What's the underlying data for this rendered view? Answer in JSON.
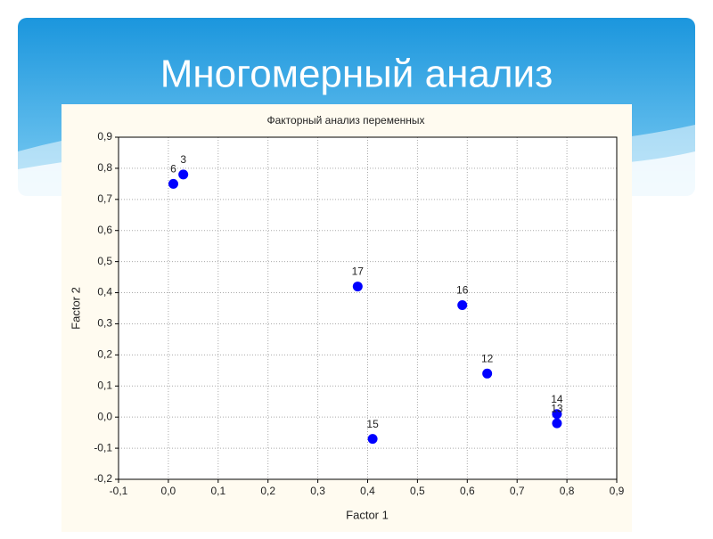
{
  "slide": {
    "title": "Многомерный анализ"
  },
  "chart_data": {
    "type": "scatter",
    "title": "Факторный анализ переменных",
    "xlabel": "Factor 1",
    "ylabel": "Factor 2",
    "color": "#0000ff",
    "grid": true,
    "x": [
      0.01,
      0.03,
      0.38,
      0.59,
      0.64,
      0.78,
      0.78,
      0.41
    ],
    "values": [
      0.75,
      0.78,
      0.42,
      0.36,
      0.14,
      0.01,
      -0.02,
      -0.07
    ],
    "point_labels": [
      "6",
      "3",
      "17",
      "16",
      "12",
      "14",
      "13",
      "15"
    ],
    "xlim": [
      -0.1,
      0.9
    ],
    "ylim": [
      -0.2,
      0.9
    ],
    "xticks": [
      {
        "value": -0.1,
        "label": "-0,1"
      },
      {
        "value": 0,
        "label": "0,0"
      },
      {
        "value": 0.1,
        "label": "0,1"
      },
      {
        "value": 0.2,
        "label": "0,2"
      },
      {
        "value": 0.3,
        "label": "0,3"
      },
      {
        "value": 0.4,
        "label": "0,4"
      },
      {
        "value": 0.5,
        "label": "0,5"
      },
      {
        "value": 0.6,
        "label": "0,6"
      },
      {
        "value": 0.7,
        "label": "0,7"
      },
      {
        "value": 0.8,
        "label": "0,8"
      },
      {
        "value": 0.9,
        "label": "0,9"
      }
    ],
    "yticks": [
      {
        "value": -0.2,
        "label": "-0,2"
      },
      {
        "value": -0.1,
        "label": "-0,1"
      },
      {
        "value": 0,
        "label": "0,0"
      },
      {
        "value": 0.1,
        "label": "0,1"
      },
      {
        "value": 0.2,
        "label": "0,2"
      },
      {
        "value": 0.3,
        "label": "0,3"
      },
      {
        "value": 0.4,
        "label": "0,4"
      },
      {
        "value": 0.5,
        "label": "0,5"
      },
      {
        "value": 0.6,
        "label": "0,6"
      },
      {
        "value": 0.7,
        "label": "0,7"
      },
      {
        "value": 0.8,
        "label": "0,8"
      },
      {
        "value": 0.9,
        "label": "0,9"
      }
    ]
  }
}
